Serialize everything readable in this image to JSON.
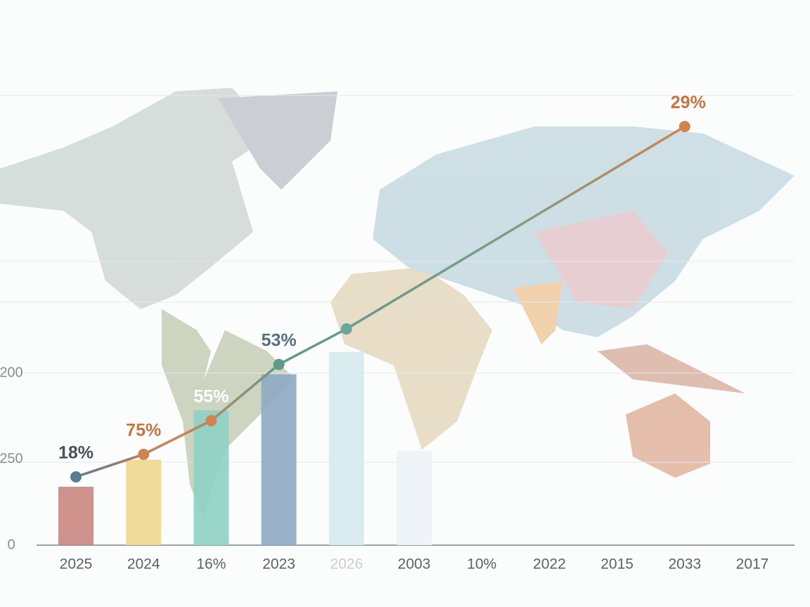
{
  "chart_data": {
    "type": "bar",
    "categories": [
      "2025",
      "2024",
      "16%",
      "2023",
      "2026",
      "2003",
      "10%",
      "2022",
      "2015",
      "2033",
      "2017"
    ],
    "y_labels": [
      "0",
      "250",
      "200"
    ],
    "ylim": [
      0,
      100
    ],
    "values": [
      13,
      19,
      30,
      38,
      43,
      21,
      null,
      null,
      null,
      null,
      null
    ],
    "colors": [
      "#c9857f",
      "#f1d68e",
      "#8fd0c4",
      "#8eaac4",
      "#d5ebef",
      "#ecf3f7",
      null,
      null,
      null,
      null,
      null
    ],
    "line": {
      "values": [
        15.2,
        20.2,
        27.7,
        40.2,
        48.1,
        57.1,
        66.1,
        75.1,
        84.1,
        93.1,
        null
      ],
      "labels": [
        "18%",
        "75%",
        "55%",
        "53%",
        null,
        null,
        null,
        null,
        null,
        "29%",
        null
      ],
      "point_colors": [
        "#5b7d93",
        "#d2834f",
        "#d2834f",
        "#5f9a8e",
        "#6aa79a",
        null,
        null,
        null,
        null,
        "#d2834f",
        null
      ],
      "label_colors": [
        "#4a5257",
        "#c8743f",
        "#ffffff",
        "#55707e",
        null,
        null,
        null,
        null,
        null,
        "#c8743f",
        null
      ]
    }
  }
}
